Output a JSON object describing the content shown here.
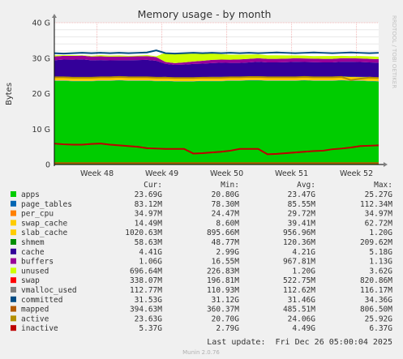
{
  "chart_data": {
    "type": "area",
    "title": "Memory usage - by month",
    "ylabel": "Bytes",
    "watermark": "RRDTOOL / TOBI OETIKER",
    "yticks": [
      {
        "value": 0,
        "label": "0"
      },
      {
        "value": 10,
        "label": "10 G"
      },
      {
        "value": 20,
        "label": "20 G"
      },
      {
        "value": 30,
        "label": "30 G"
      },
      {
        "value": 40,
        "label": "40 G"
      }
    ],
    "ylim": [
      0,
      40
    ],
    "xlim": [
      0,
      35
    ],
    "xticks": [
      {
        "value": 4.6,
        "label": "Week 48"
      },
      {
        "value": 11.6,
        "label": "Week 49"
      },
      {
        "value": 18.6,
        "label": "Week 50"
      },
      {
        "value": 25.6,
        "label": "Week 51"
      },
      {
        "value": 32.6,
        "label": "Week 52"
      }
    ],
    "x": [
      0,
      1,
      2,
      3,
      4,
      5,
      6,
      7,
      8,
      9,
      10,
      11,
      12,
      13,
      14,
      15,
      16,
      17,
      18,
      19,
      20,
      21,
      22,
      23,
      24,
      25,
      26,
      27,
      28,
      29,
      30,
      31,
      32,
      33,
      34,
      35
    ],
    "stack_layers": [
      {
        "name": "apps",
        "color": "#00cc00",
        "values": [
          23.6,
          23.6,
          23.5,
          23.5,
          23.5,
          23.6,
          23.6,
          23.7,
          23.6,
          23.6,
          23.6,
          23.5,
          23.5,
          23.4,
          23.4,
          23.4,
          23.5,
          23.5,
          23.5,
          23.6,
          23.6,
          23.7,
          23.7,
          23.6,
          23.6,
          23.6,
          23.6,
          23.7,
          23.6,
          23.6,
          23.6,
          23.7,
          23.6,
          23.6,
          23.5,
          23.4
        ]
      },
      {
        "name": "page_tables",
        "color": "#0066b3",
        "values": [
          0.08,
          0.08,
          0.08,
          0.08,
          0.08,
          0.08,
          0.08,
          0.08,
          0.08,
          0.08,
          0.08,
          0.08,
          0.08,
          0.08,
          0.08,
          0.08,
          0.08,
          0.08,
          0.08,
          0.08,
          0.08,
          0.08,
          0.08,
          0.08,
          0.08,
          0.08,
          0.08,
          0.08,
          0.08,
          0.08,
          0.08,
          0.08,
          0.08,
          0.08,
          0.08,
          0.08
        ]
      },
      {
        "name": "per_cpu",
        "color": "#ff8000",
        "values": [
          0.03,
          0.03,
          0.03,
          0.03,
          0.03,
          0.03,
          0.03,
          0.03,
          0.03,
          0.03,
          0.03,
          0.03,
          0.03,
          0.03,
          0.03,
          0.03,
          0.03,
          0.03,
          0.03,
          0.03,
          0.03,
          0.03,
          0.03,
          0.03,
          0.03,
          0.03,
          0.03,
          0.03,
          0.03,
          0.03,
          0.03,
          0.03,
          0.03,
          0.03,
          0.03,
          0.03
        ]
      },
      {
        "name": "swap_cache",
        "color": "#ffcc00",
        "values": [
          0.04,
          0.04,
          0.04,
          0.04,
          0.04,
          0.04,
          0.04,
          0.04,
          0.04,
          0.04,
          0.04,
          0.04,
          0.04,
          0.04,
          0.04,
          0.04,
          0.04,
          0.04,
          0.04,
          0.04,
          0.04,
          0.04,
          0.04,
          0.04,
          0.04,
          0.04,
          0.04,
          0.04,
          0.04,
          0.04,
          0.04,
          0.04,
          0.04,
          0.04,
          0.04,
          0.04
        ]
      },
      {
        "name": "slab_cache",
        "color": "#ffcc00",
        "values": [
          1.0,
          1.0,
          0.95,
          0.95,
          0.9,
          0.95,
          0.95,
          1.0,
          1.0,
          0.95,
          0.9,
          0.95,
          1.0,
          0.9,
          0.9,
          0.95,
          0.95,
          1.0,
          1.0,
          0.95,
          0.95,
          0.9,
          0.95,
          1.0,
          1.0,
          0.95,
          0.95,
          0.9,
          0.95,
          1.0,
          1.0,
          0.95,
          0.95,
          0.9,
          1.0,
          1.0
        ]
      },
      {
        "name": "shmem",
        "color": "#008f00",
        "values": [
          0.06,
          0.06,
          0.06,
          0.06,
          0.06,
          0.06,
          0.06,
          0.06,
          0.06,
          0.06,
          0.06,
          0.06,
          0.06,
          0.06,
          0.06,
          0.06,
          0.06,
          0.06,
          0.06,
          0.06,
          0.06,
          0.06,
          0.06,
          0.06,
          0.06,
          0.06,
          0.06,
          0.06,
          0.06,
          0.06,
          0.06,
          0.06,
          0.06,
          0.06,
          0.06,
          0.06
        ]
      },
      {
        "name": "cache",
        "color": "#330099",
        "values": [
          4.6,
          4.8,
          4.9,
          5.0,
          4.8,
          4.7,
          4.6,
          4.5,
          4.6,
          4.7,
          4.8,
          4.6,
          3.7,
          3.6,
          3.7,
          3.8,
          3.8,
          3.9,
          4.0,
          3.9,
          3.9,
          4.0,
          4.1,
          4.0,
          4.0,
          4.1,
          4.2,
          4.1,
          4.1,
          4.0,
          4.0,
          4.1,
          4.2,
          4.2,
          4.1,
          4.1
        ]
      },
      {
        "name": "buffers",
        "color": "#990099",
        "values": [
          1.06,
          1.06,
          1.06,
          1.06,
          1.06,
          1.06,
          1.06,
          1.06,
          1.06,
          1.06,
          1.06,
          1.06,
          0.5,
          0.5,
          0.6,
          0.7,
          0.8,
          0.9,
          0.9,
          0.9,
          1.0,
          1.0,
          1.0,
          1.0,
          1.0,
          1.0,
          1.0,
          1.0,
          1.0,
          1.0,
          1.0,
          1.0,
          1.0,
          1.0,
          1.0,
          1.0
        ]
      },
      {
        "name": "unused",
        "color": "#ccff00",
        "values": [
          0.3,
          0.2,
          0.2,
          0.1,
          0.2,
          0.3,
          0.3,
          0.3,
          0.2,
          0.2,
          0.3,
          0.2,
          2.6,
          2.6,
          2.4,
          2.2,
          2.0,
          1.8,
          1.5,
          1.4,
          1.3,
          1.2,
          1.1,
          1.0,
          1.0,
          0.9,
          0.8,
          0.8,
          0.7,
          0.8,
          0.8,
          0.7,
          0.6,
          0.7,
          0.7,
          0.7
        ]
      }
    ],
    "line_series": [
      {
        "name": "committed",
        "color": "#004b83",
        "values": [
          31.4,
          31.3,
          31.4,
          31.5,
          31.4,
          31.5,
          31.4,
          31.5,
          31.4,
          31.5,
          31.6,
          32.2,
          31.4,
          31.3,
          31.4,
          31.5,
          31.4,
          31.5,
          31.4,
          31.5,
          31.4,
          31.5,
          31.4,
          31.5,
          31.6,
          31.5,
          31.4,
          31.5,
          31.6,
          31.5,
          31.4,
          31.5,
          31.6,
          31.5,
          31.4,
          31.5
        ]
      },
      {
        "name": "mapped",
        "color": "#b35a00",
        "values": [
          0.4,
          0.4,
          0.4,
          0.4,
          0.4,
          0.4,
          0.4,
          0.4,
          0.4,
          0.4,
          0.4,
          0.4,
          0.4,
          0.4,
          0.4,
          0.4,
          0.4,
          0.4,
          0.4,
          0.4,
          0.4,
          0.4,
          0.4,
          0.4,
          0.4,
          0.4,
          0.4,
          0.4,
          0.4,
          0.4,
          0.4,
          0.4,
          0.4,
          0.4,
          0.4,
          0.4
        ]
      },
      {
        "name": "active",
        "color": "#b38f00",
        "values": [
          24.6,
          24.6,
          24.5,
          24.5,
          24.5,
          24.6,
          24.6,
          24.7,
          24.6,
          24.6,
          24.6,
          24.5,
          24.5,
          24.4,
          24.4,
          24.4,
          24.5,
          24.5,
          24.5,
          24.6,
          24.6,
          24.7,
          24.7,
          24.6,
          24.6,
          24.6,
          24.6,
          24.7,
          24.6,
          24.6,
          24.6,
          24.7,
          23.8,
          24.2,
          24.5,
          24.4
        ]
      },
      {
        "name": "inactive",
        "color": "#bd0000",
        "values": [
          5.9,
          5.7,
          5.6,
          5.6,
          5.8,
          5.9,
          5.6,
          5.4,
          5.2,
          5.0,
          4.6,
          4.5,
          4.4,
          4.4,
          4.4,
          3.1,
          3.2,
          3.4,
          3.6,
          3.9,
          4.4,
          4.4,
          4.4,
          2.9,
          3.0,
          3.2,
          3.4,
          3.6,
          3.8,
          3.9,
          4.3,
          4.5,
          4.8,
          5.2,
          5.3,
          5.4
        ]
      }
    ],
    "legend_header": {
      "cur": "Cur:",
      "min": "Min:",
      "avg": "Avg:",
      "max": "Max:"
    },
    "legend": [
      {
        "name": "apps",
        "color": "#00cc00",
        "cur": "23.69G",
        "min": "20.80G",
        "avg": "23.47G",
        "max": "25.27G"
      },
      {
        "name": "page_tables",
        "color": "#0066b3",
        "cur": "83.12M",
        "min": "78.30M",
        "avg": "85.55M",
        "max": "112.34M"
      },
      {
        "name": "per_cpu",
        "color": "#ff8000",
        "cur": "34.97M",
        "min": "24.47M",
        "avg": "29.72M",
        "max": "34.97M"
      },
      {
        "name": "swap_cache",
        "color": "#ffcc00",
        "cur": "14.49M",
        "min": "8.60M",
        "avg": "39.41M",
        "max": "62.72M"
      },
      {
        "name": "slab_cache",
        "color": "#ffcc00",
        "cur": "1020.63M",
        "min": "895.66M",
        "avg": "956.96M",
        "max": "1.20G"
      },
      {
        "name": "shmem",
        "color": "#008f00",
        "cur": "58.63M",
        "min": "48.77M",
        "avg": "120.36M",
        "max": "209.62M"
      },
      {
        "name": "cache",
        "color": "#330099",
        "cur": "4.41G",
        "min": "2.99G",
        "avg": "4.21G",
        "max": "5.18G"
      },
      {
        "name": "buffers",
        "color": "#990099",
        "cur": "1.06G",
        "min": "16.55M",
        "avg": "967.81M",
        "max": "1.13G"
      },
      {
        "name": "unused",
        "color": "#ccff00",
        "cur": "696.64M",
        "min": "226.83M",
        "avg": "1.20G",
        "max": "3.62G"
      },
      {
        "name": "swap",
        "color": "#ff0000",
        "cur": "338.07M",
        "min": "196.81M",
        "avg": "522.75M",
        "max": "820.86M"
      },
      {
        "name": "vmalloc_used",
        "color": "#808080",
        "cur": "112.77M",
        "min": "110.93M",
        "avg": "112.62M",
        "max": "116.17M"
      },
      {
        "name": "committed",
        "color": "#004b83",
        "cur": "31.53G",
        "min": "31.12G",
        "avg": "31.46G",
        "max": "34.36G"
      },
      {
        "name": "mapped",
        "color": "#b35a00",
        "cur": "394.63M",
        "min": "360.37M",
        "avg": "485.51M",
        "max": "806.50M"
      },
      {
        "name": "active",
        "color": "#b38f00",
        "cur": "23.63G",
        "min": "20.70G",
        "avg": "24.06G",
        "max": "25.92G"
      },
      {
        "name": "inactive",
        "color": "#bd0000",
        "cur": "5.37G",
        "min": "2.79G",
        "avg": "4.49G",
        "max": "6.37G"
      }
    ],
    "last_update": "Last update:  Fri Dec 26 05:00:04 2025",
    "footer": "Munin 2.0.76"
  }
}
